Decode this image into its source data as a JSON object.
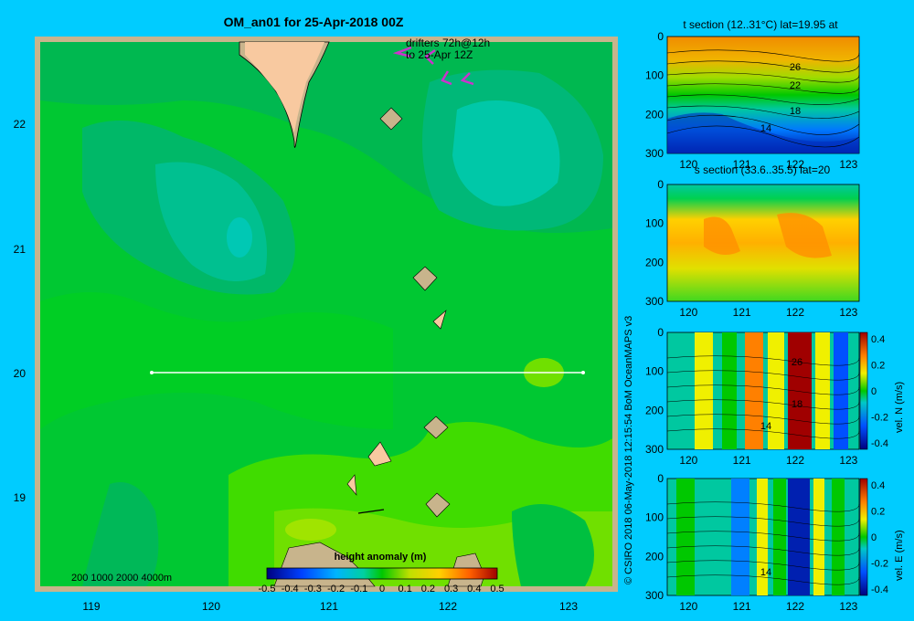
{
  "colors": {
    "background": "#00ccff",
    "frame": "#c8b48c",
    "land": "#f8c9a0",
    "transect": "#ffffff",
    "drifter": "#cc33cc"
  },
  "map": {
    "title": "OM_an01 for 25-Apr-2018 00Z",
    "drifter_label_line1": "drifters 72h@12h",
    "drifter_label_line2": "to 25-Apr 12Z",
    "scale_label": "200  1000  2000  4000m",
    "lon_ticks": [
      "119",
      "120",
      "121",
      "122",
      "123"
    ],
    "lat_ticks": [
      "22",
      "21",
      "20",
      "19"
    ],
    "colorbar_title": "height anomaly  (m)",
    "colorbar_ticks": [
      "-0.5",
      "-0.4",
      "-0.3",
      "-0.2",
      "-0.1",
      "0",
      "0.1",
      "0.2",
      "0.3",
      "0.4",
      "0.5"
    ]
  },
  "credit": "© CSIRO 2018   06-May-2018 12:15:54 BoM OceanMAPS v3",
  "panels": {
    "t": {
      "title": "t section (12..31°C) lat=19.95 at",
      "contour_labels": [
        "26",
        "22",
        "18",
        "14"
      ]
    },
    "s": {
      "title": "s section (33.6..35.5) lat=20"
    },
    "vn": {
      "side_label": "vel. N  (m/s)",
      "contour_labels": [
        "26",
        "18",
        "14"
      ]
    },
    "ve": {
      "side_label": "vel. E  (m/s)",
      "contour_labels": [
        "14"
      ]
    },
    "depth_ticks": [
      "0",
      "100",
      "200",
      "300"
    ],
    "lon_ticks": [
      "120",
      "121",
      "122",
      "123"
    ],
    "vel_ticks": [
      "0.4",
      "0.2",
      "0",
      "-0.2",
      "-0.4"
    ]
  },
  "chart_data": [
    {
      "type": "heatmap",
      "title": "OM_an01 for 25-Apr-2018 00Z",
      "x_ticks": [
        119,
        120,
        121,
        122,
        123
      ],
      "y_ticks": [
        22,
        21,
        20,
        19
      ],
      "xlim": [
        118.5,
        123.5
      ],
      "ylim": [
        18.3,
        22.7
      ],
      "colorbar": {
        "label": "height anomaly  (m)",
        "range": [
          -0.5,
          0.5
        ],
        "step": 0.1
      },
      "transect": {
        "lat": 20,
        "lon": [
          119.5,
          123.2
        ]
      },
      "annotations": [
        "drifters 72h@12h",
        "to 25-Apr 12Z"
      ]
    },
    {
      "type": "heatmap",
      "title": "t section (12..31°C) lat=19.95 at",
      "xlim": [
        119.6,
        123.2
      ],
      "ylim": [
        300,
        0
      ],
      "x_ticks": [
        120,
        121,
        122,
        123
      ],
      "y_ticks": [
        0,
        100,
        200,
        300
      ],
      "contour_labels": [
        26,
        22,
        18,
        14
      ]
    },
    {
      "type": "heatmap",
      "title": "s section (33.6..35.5) lat=20",
      "xlim": [
        119.6,
        123.2
      ],
      "ylim": [
        300,
        0
      ],
      "x_ticks": [
        120,
        121,
        122,
        123
      ],
      "y_ticks": [
        0,
        100,
        200,
        300
      ]
    },
    {
      "type": "heatmap",
      "ylabel": "vel. N  (m/s)",
      "colorbar_range": [
        -0.4,
        0.4
      ],
      "xlim": [
        119.6,
        123.2
      ],
      "ylim": [
        300,
        0
      ],
      "x_ticks": [
        120,
        121,
        122,
        123
      ],
      "y_ticks": [
        0,
        100,
        200,
        300
      ]
    },
    {
      "type": "heatmap",
      "ylabel": "vel. E  (m/s)",
      "colorbar_range": [
        -0.4,
        0.4
      ],
      "xlim": [
        119.6,
        123.2
      ],
      "ylim": [
        300,
        0
      ],
      "x_ticks": [
        120,
        121,
        122,
        123
      ],
      "y_ticks": [
        0,
        100,
        200,
        300
      ]
    }
  ]
}
